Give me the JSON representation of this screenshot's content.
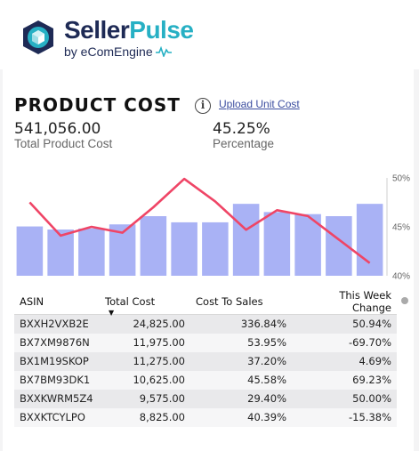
{
  "brand": {
    "name_part1": "Seller",
    "name_part2": "Pulse",
    "sub": "by eComEngine",
    "primary_color": "#1e2a55",
    "accent_color": "#27b0c4"
  },
  "header": {
    "title": "PRODUCT COST",
    "info_icon": "info-icon",
    "upload_link": "Upload Unit Cost"
  },
  "kpis": {
    "total_value": "541,056.00",
    "total_label": "Total Product Cost",
    "pct_value": "45.25%",
    "pct_label": "Percentage"
  },
  "chart_data": {
    "type": "bar",
    "bar_color": "#a9b2f5",
    "line_color": "#ef4566",
    "bars": [
      0.48,
      0.45,
      0.46,
      0.5,
      0.58,
      0.52,
      0.52,
      0.7,
      0.62,
      0.6,
      0.58,
      0.7
    ],
    "line_pct": [
      47.5,
      44.1,
      45.0,
      44.4,
      47.0,
      49.9,
      47.6,
      44.7,
      46.7,
      46.1,
      43.7,
      41.3
    ],
    "y_right_ticks": [
      "50%",
      "45%",
      "40%"
    ],
    "y_right_range": [
      40,
      50
    ]
  },
  "table": {
    "columns": [
      "ASIN",
      "Total Cost",
      "Cost To Sales",
      "This Week Change"
    ],
    "sort_indicator": "▼",
    "rows": [
      [
        "BXXH2VXB2E",
        "24,825.00",
        "336.84%",
        "50.94%"
      ],
      [
        "BX7XM9876N",
        "11,975.00",
        "53.95%",
        "-69.70%"
      ],
      [
        "BX1M19SKOP",
        "11,275.00",
        "37.20%",
        "4.69%"
      ],
      [
        "BX7BM93DK1",
        "10,625.00",
        "45.58%",
        "69.23%"
      ],
      [
        "BXXKWRM5Z4",
        "9,575.00",
        "29.40%",
        "50.00%"
      ],
      [
        "BXXKTCYLPO",
        "8,825.00",
        "40.39%",
        "-15.38%"
      ]
    ]
  }
}
